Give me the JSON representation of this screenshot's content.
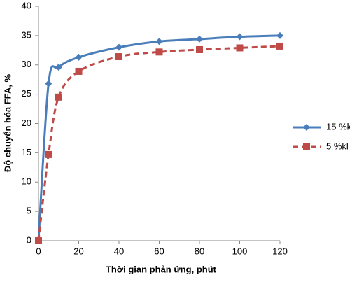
{
  "chart_data": {
    "type": "line",
    "xlabel": "Thời gian phản ứng, phút",
    "ylabel": "Độ chuyển hóa FFA, %",
    "x": [
      0,
      5,
      10,
      20,
      40,
      60,
      80,
      100,
      120
    ],
    "series": [
      {
        "name": "15 %kl",
        "color": "#4a7ebb",
        "marker": "diamond",
        "dash": false,
        "values": [
          0,
          26.8,
          29.6,
          31.3,
          33.0,
          34.0,
          34.4,
          34.8,
          35.0
        ]
      },
      {
        "name": "5 %kl",
        "color": "#be4b48",
        "marker": "square",
        "dash": true,
        "values": [
          0,
          14.7,
          24.5,
          28.9,
          31.4,
          32.2,
          32.6,
          32.9,
          33.2
        ]
      }
    ],
    "xlim": [
      0,
      120
    ],
    "xticks": [
      0,
      20,
      40,
      60,
      80,
      100,
      120
    ],
    "ylim": [
      0,
      40
    ],
    "yticks": [
      0,
      5,
      10,
      15,
      20,
      25,
      30,
      35,
      40
    ],
    "legend": "right"
  }
}
